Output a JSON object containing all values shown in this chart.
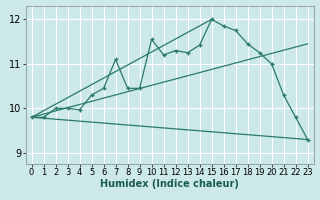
{
  "xlabel": "Humidex (Indice chaleur)",
  "background_color": "#cce8e8",
  "grid_color": "#ffffff",
  "line_color": "#2a7a6a",
  "xlim": [
    -0.5,
    23.5
  ],
  "ylim": [
    8.75,
    12.3
  ],
  "yticks": [
    9,
    10,
    11,
    12
  ],
  "xticks": [
    0,
    1,
    2,
    3,
    4,
    5,
    6,
    7,
    8,
    9,
    10,
    11,
    12,
    13,
    14,
    15,
    16,
    17,
    18,
    19,
    20,
    21,
    22,
    23
  ],
  "series1_x": [
    0,
    1,
    2,
    3,
    4,
    5,
    6,
    7,
    8,
    9,
    10,
    11,
    12,
    13,
    14,
    15,
    16,
    17,
    18,
    19,
    20,
    21,
    22,
    23
  ],
  "series1_y": [
    9.8,
    9.8,
    10.0,
    10.0,
    9.97,
    10.3,
    10.45,
    11.1,
    10.45,
    10.45,
    11.55,
    11.2,
    11.3,
    11.25,
    11.42,
    12.0,
    11.85,
    11.75,
    11.45,
    11.25,
    11.0,
    10.3,
    9.8,
    9.3
  ],
  "series2_x": [
    0,
    23
  ],
  "series2_y": [
    9.8,
    11.45
  ],
  "series3_x": [
    0,
    23
  ],
  "series3_y": [
    9.8,
    9.3
  ],
  "series4_x": [
    0,
    15
  ],
  "series4_y": [
    9.8,
    12.0
  ],
  "font_size_ticks": 6,
  "font_size_label": 7
}
